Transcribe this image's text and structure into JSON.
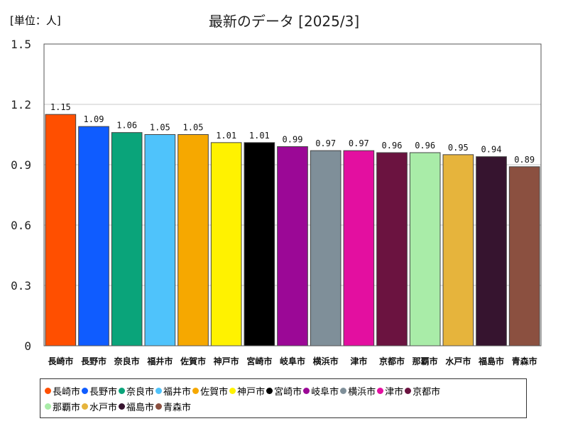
{
  "chart_data": {
    "type": "bar",
    "title": "最新のデータ [2025/3]",
    "unit_label": "[単位：人]",
    "ylabel": "",
    "xlabel": "",
    "ylim": [
      0,
      1.5
    ],
    "yticks": [
      0,
      0.3,
      0.6,
      0.9,
      1.2,
      1.5
    ],
    "ytick_labels": [
      "0",
      "0.3",
      "0.6",
      "0.9",
      "1.2",
      "1.5"
    ],
    "grid": true,
    "legend_position": "bottom",
    "categories": [
      "長崎市",
      "長野市",
      "奈良市",
      "福井市",
      "佐賀市",
      "神戸市",
      "宮崎市",
      "岐阜市",
      "横浜市",
      "津市",
      "京都市",
      "那覇市",
      "水戸市",
      "福島市",
      "青森市"
    ],
    "values": [
      1.15,
      1.09,
      1.06,
      1.05,
      1.05,
      1.01,
      1.01,
      0.99,
      0.97,
      0.97,
      0.96,
      0.96,
      0.95,
      0.94,
      0.89
    ],
    "value_labels": [
      "1.15",
      "1.09",
      "1.06",
      "1.05",
      "1.05",
      "1.01",
      "1.01",
      "0.99",
      "0.97",
      "0.97",
      "0.96",
      "0.96",
      "0.95",
      "0.94",
      "0.89"
    ],
    "colors": [
      "#ff4f00",
      "#0f5cff",
      "#0aa47a",
      "#4fc3fb",
      "#f6a800",
      "#fff200",
      "#000000",
      "#9b0896",
      "#7f8f99",
      "#e30fa0",
      "#6b1340",
      "#a9eca8",
      "#e6b43c",
      "#36142f",
      "#8b5040"
    ]
  }
}
